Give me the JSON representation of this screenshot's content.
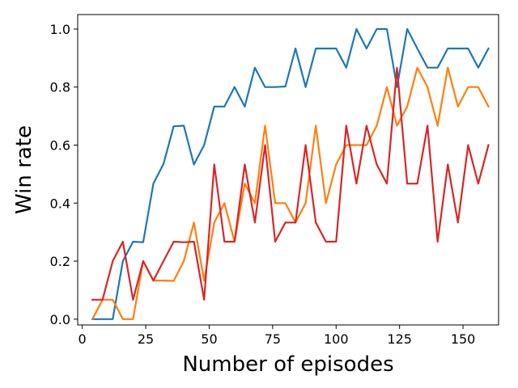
{
  "chart_data": {
    "type": "line",
    "title": "",
    "xlabel": "Number of episodes",
    "ylabel": "Win rate",
    "xlim": [
      -1.8,
      164.0
    ],
    "ylim": [
      -0.02,
      1.05
    ],
    "xticks": [
      0,
      25,
      50,
      75,
      100,
      125,
      150
    ],
    "yticks": [
      0.0,
      0.2,
      0.4,
      0.6,
      0.8,
      1.0
    ],
    "ytick_labels": [
      "0.0",
      "0.2",
      "0.4",
      "0.6",
      "0.8",
      "1.0"
    ],
    "grid": false,
    "legend": "none",
    "x": [
      4,
      8,
      12,
      16,
      20,
      24,
      28,
      32,
      36,
      40,
      44,
      48,
      52,
      56,
      60,
      64,
      68,
      72,
      76,
      80,
      84,
      88,
      92,
      96,
      100,
      104,
      108,
      112,
      116,
      120,
      124,
      128,
      132,
      136,
      140,
      144,
      148,
      152,
      156,
      160
    ],
    "series": [
      {
        "color": "#1f77b4",
        "values": [
          0.0,
          0.0,
          0.0,
          0.2,
          0.267,
          0.265,
          0.467,
          0.535,
          0.665,
          0.667,
          0.533,
          0.6,
          0.733,
          0.733,
          0.8,
          0.733,
          0.867,
          0.8,
          0.8,
          0.802,
          0.933,
          0.8,
          0.933,
          0.933,
          0.933,
          0.867,
          1.0,
          0.933,
          1.0,
          1.0,
          0.8,
          1.0,
          0.933,
          0.867,
          0.867,
          0.933,
          0.933,
          0.933,
          0.867,
          0.933
        ]
      },
      {
        "color": "#ff7f0e",
        "values": [
          0.0,
          0.067,
          0.067,
          0.0,
          0.0,
          0.2,
          0.133,
          0.133,
          0.132,
          0.2,
          0.333,
          0.133,
          0.333,
          0.4,
          0.267,
          0.467,
          0.4,
          0.667,
          0.4,
          0.4,
          0.333,
          0.4,
          0.667,
          0.4,
          0.533,
          0.6,
          0.6,
          0.6,
          0.667,
          0.8,
          0.667,
          0.733,
          0.867,
          0.8,
          0.667,
          0.867,
          0.733,
          0.8,
          0.8,
          0.733
        ]
      },
      {
        "color": "#d62728",
        "values": [
          0.067,
          0.067,
          0.2,
          0.267,
          0.067,
          0.2,
          0.133,
          0.2,
          0.267,
          0.265,
          0.267,
          0.067,
          0.533,
          0.267,
          0.267,
          0.533,
          0.333,
          0.6,
          0.267,
          0.333,
          0.333,
          0.6,
          0.333,
          0.267,
          0.267,
          0.667,
          0.467,
          0.667,
          0.533,
          0.467,
          0.867,
          0.467,
          0.467,
          0.667,
          0.267,
          0.533,
          0.333,
          0.6,
          0.467,
          0.6
        ]
      }
    ]
  }
}
